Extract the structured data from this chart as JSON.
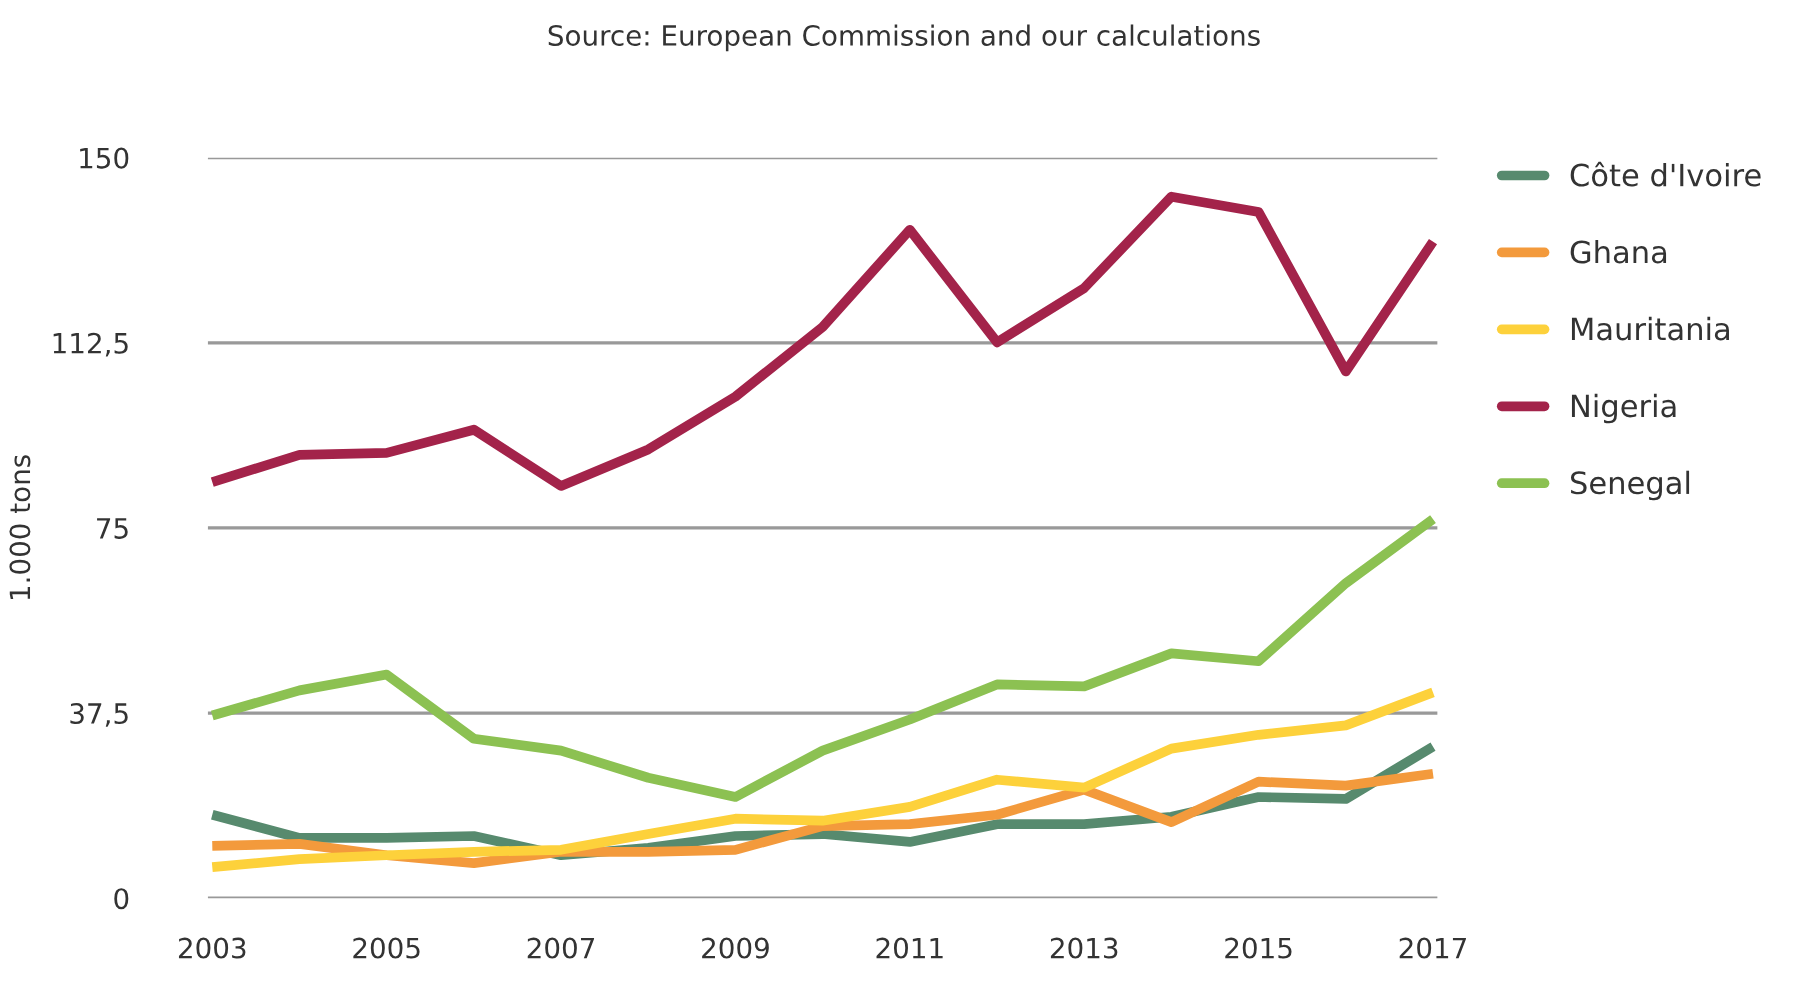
{
  "chart_data": {
    "type": "line",
    "annotations": [
      "Source: European Commission and our calculations"
    ],
    "ylabel": "1.000 tons",
    "categories": [
      "2003",
      null,
      "2005",
      null,
      "2007",
      null,
      "2009",
      null,
      "2011",
      null,
      "2013",
      null,
      "2015",
      null,
      "2017"
    ],
    "series": [
      {
        "name": "Côte d'Ivoire",
        "color": "#578a6e",
        "values": [
          16.9,
          12.2,
          12.2,
          12.6,
          8.7,
          10.2,
          12.6,
          13,
          11.4,
          15,
          15,
          16.5,
          20.5,
          20.1,
          30.7
        ]
      },
      {
        "name": "Ghana",
        "color": "#f39a3c",
        "values": [
          10.6,
          11,
          8.7,
          7.1,
          9.4,
          9.4,
          9.8,
          14.6,
          15,
          16.9,
          22,
          15.4,
          23.6,
          22.8,
          25.2
        ]
      },
      {
        "name": "Mauritania",
        "color": "#fdd13b",
        "values": [
          6.3,
          7.9,
          8.7,
          9.4,
          9.8,
          13,
          16.1,
          15.7,
          18.5,
          24,
          22.4,
          30.3,
          33.1,
          35,
          41.7
        ]
      },
      {
        "name": "Nigeria",
        "color": "#a3234a",
        "values": [
          84.3,
          89.8,
          90.2,
          94.9,
          83.5,
          90.9,
          101.6,
          115.7,
          135.4,
          112.6,
          123.6,
          142.1,
          139,
          106.7,
          133
        ]
      },
      {
        "name": "Senegal",
        "color": "#8cc152",
        "values": [
          37,
          42.1,
          45.3,
          32.3,
          29.9,
          24.4,
          20.5,
          29.9,
          36.2,
          43.3,
          42.9,
          49.6,
          48,
          63.8,
          76.8
        ]
      }
    ],
    "ylim": [
      0,
      150
    ],
    "yticks": [
      0,
      {
        "value": 37.5,
        "label": "37,5"
      },
      75,
      {
        "value": 112.5,
        "label": "112,5"
      },
      150
    ],
    "grid": "y",
    "legend": "right",
    "marker": "none",
    "line_style": "solid"
  }
}
